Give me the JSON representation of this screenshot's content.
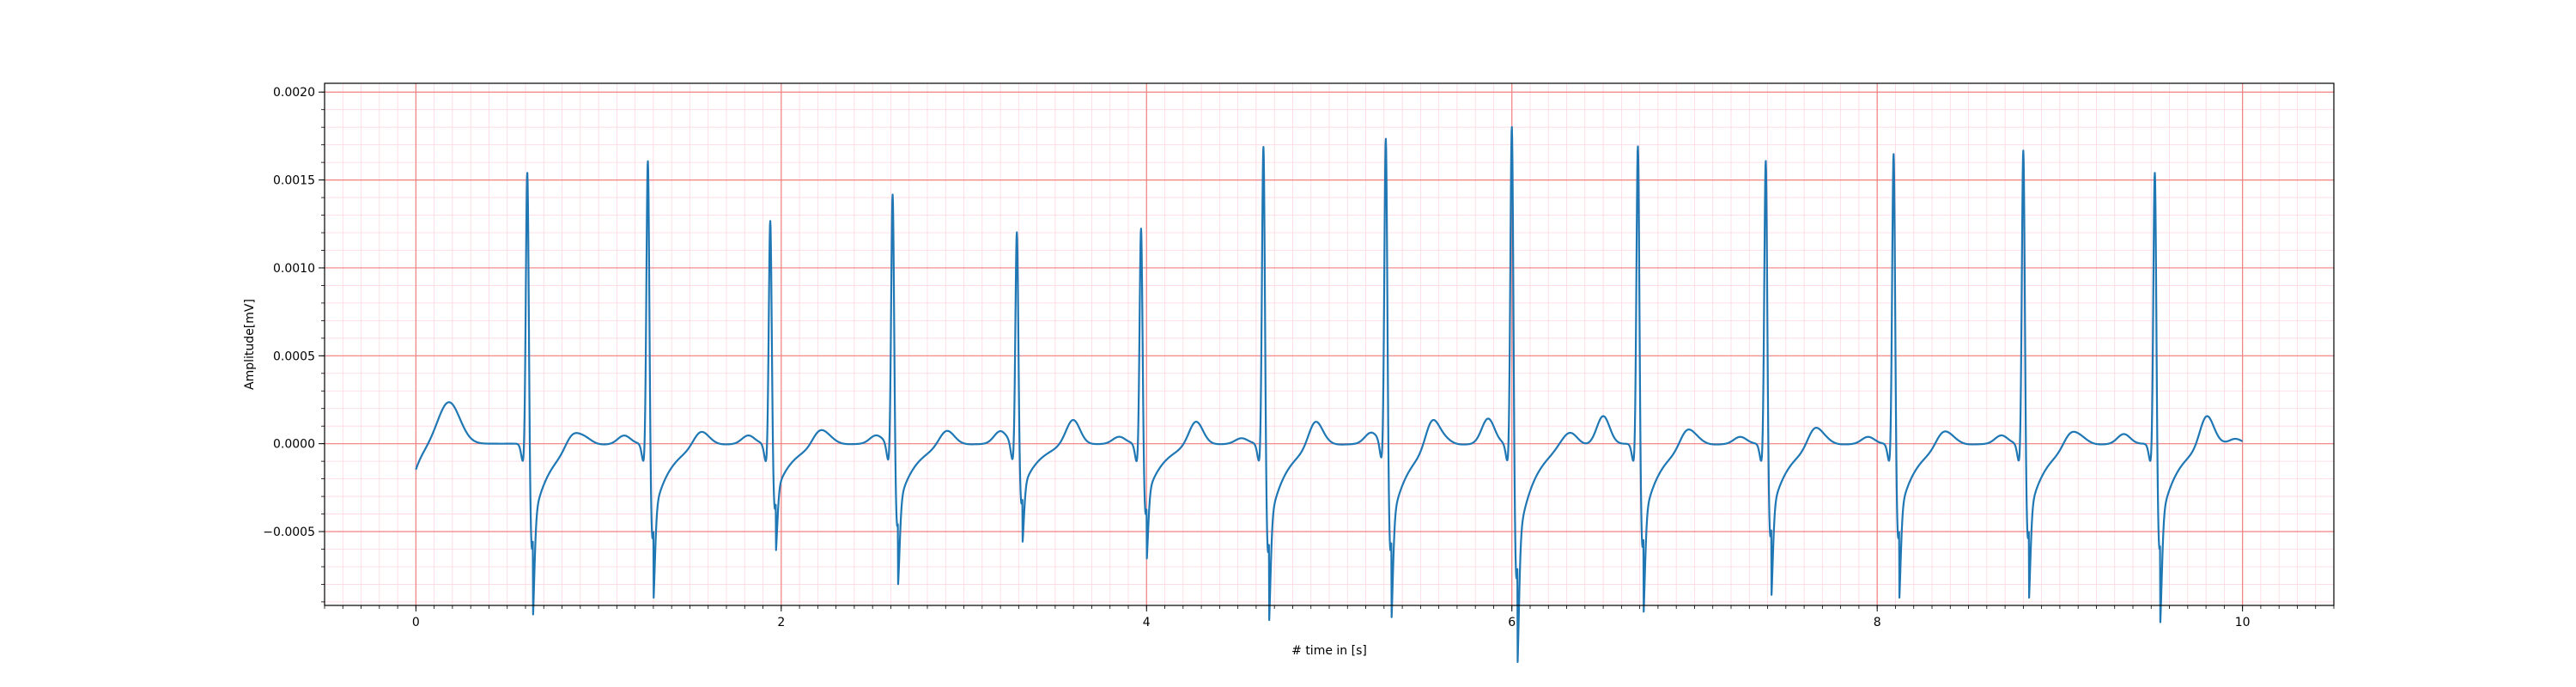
{
  "chart_data": {
    "type": "line",
    "title": "",
    "xlabel": "# time in [s]",
    "ylabel": "Amplitude[mV]",
    "xlim": [
      -0.5,
      10.5
    ],
    "ylim": [
      -0.00092,
      0.00205
    ],
    "x_ticks": [
      0,
      2,
      4,
      6,
      8,
      10
    ],
    "x_tick_labels": [
      "0",
      "2",
      "4",
      "6",
      "8",
      "10"
    ],
    "y_ticks": [
      -0.0005,
      0.0,
      0.0005,
      0.001,
      0.0015,
      0.002
    ],
    "y_tick_labels": [
      "−0.0005",
      "0.0000",
      "0.0005",
      "0.0010",
      "0.0015",
      "0.0020"
    ],
    "grid": {
      "major": true,
      "minor": true,
      "major_color": "#f08080",
      "minor_color": "#ffd6df",
      "x_minor_step": 0.1,
      "y_minor_step": 0.0001
    },
    "line_color": "#1f77b4",
    "series": [
      {
        "description_values": "ECG trace sampled as [time_s, amplitude_mV] pairs",
        "x_start": 0,
        "x_end": 10,
        "baseline": [
          [
            0.0,
            -0.00013
          ],
          [
            0.05,
            5e-05
          ],
          [
            0.1,
            0.00013
          ],
          [
            0.18,
            0.00024
          ],
          [
            0.25,
            0.00015
          ],
          [
            0.3,
            3e-05
          ],
          [
            0.35,
            0.0
          ],
          [
            0.45,
            4e-05
          ],
          [
            0.52,
            2e-05
          ],
          [
            0.56,
            -3e-05
          ]
        ],
        "beats": [
          {
            "r_time": 0.61,
            "r_peak": 0.00164,
            "s_min": -0.00061
          },
          {
            "r_time": 1.27,
            "r_peak": 0.0017,
            "s_min": -0.00055
          },
          {
            "r_time": 1.94,
            "r_peak": 0.00134,
            "s_min": -0.00038
          },
          {
            "r_time": 2.61,
            "r_peak": 0.0015,
            "s_min": -0.00048
          },
          {
            "r_time": 3.29,
            "r_peak": 0.00127,
            "s_min": -0.00035
          },
          {
            "r_time": 3.97,
            "r_peak": 0.0013,
            "s_min": -0.00041
          },
          {
            "r_time": 4.64,
            "r_peak": 0.00179,
            "s_min": -0.00063
          },
          {
            "r_time": 5.31,
            "r_peak": 0.00183,
            "s_min": -0.00062
          },
          {
            "r_time": 6.0,
            "r_peak": 0.00192,
            "s_min": -0.00078
          },
          {
            "r_time": 6.69,
            "r_peak": 0.00179,
            "s_min": -0.0006
          },
          {
            "r_time": 7.39,
            "r_peak": 0.0017,
            "s_min": -0.00054
          },
          {
            "r_time": 8.09,
            "r_peak": 0.00174,
            "s_min": -0.00055
          },
          {
            "r_time": 8.8,
            "r_peak": 0.00176,
            "s_min": -0.00055
          },
          {
            "r_time": 9.52,
            "r_peak": 0.00164,
            "s_min": -0.00061
          }
        ],
        "inter_beat_features": [
          {
            "t": 0.85,
            "v": 8e-05
          },
          {
            "t": 1.14,
            "v": 6e-05
          },
          {
            "t": 1.55,
            "v": 4e-05
          },
          {
            "t": 1.82,
            "v": 6e-05
          },
          {
            "t": 2.2,
            "v": 6e-05
          },
          {
            "t": 2.52,
            "v": 6e-05
          },
          {
            "t": 2.9,
            "v": 4e-05
          },
          {
            "t": 3.2,
            "v": 9e-05
          },
          {
            "t": 3.6,
            "v": 0.00011
          },
          {
            "t": 3.85,
            "v": 5e-05
          },
          {
            "t": 4.27,
            "v": 0.0001
          },
          {
            "t": 4.52,
            "v": 4e-05
          },
          {
            "t": 4.92,
            "v": 0.00012
          },
          {
            "t": 5.23,
            "v": 8e-05
          },
          {
            "t": 5.56,
            "v": 0.00017
          },
          {
            "t": 5.87,
            "v": 0.00018
          },
          {
            "t": 6.33,
            "v": 4e-05
          },
          {
            "t": 6.5,
            "v": 0.0002
          },
          {
            "t": 6.95,
            "v": 8e-05
          },
          {
            "t": 7.25,
            "v": 5e-05
          },
          {
            "t": 7.65,
            "v": 9e-05
          },
          {
            "t": 7.95,
            "v": 5e-05
          },
          {
            "t": 8.35,
            "v": 6e-05
          },
          {
            "t": 8.68,
            "v": 6e-05
          },
          {
            "t": 9.05,
            "v": 7e-05
          },
          {
            "t": 9.35,
            "v": 7e-05
          },
          {
            "t": 9.8,
            "v": 0.00016
          },
          {
            "t": 9.96,
            "v": 4e-05
          }
        ]
      }
    ]
  }
}
